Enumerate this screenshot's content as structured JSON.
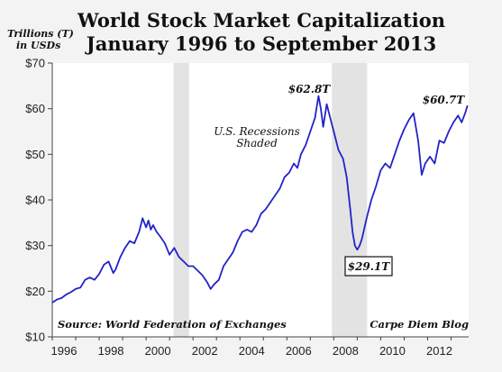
{
  "chart_data": {
    "type": "line",
    "title": "World Stock Market Capitalization",
    "subtitle": "January 1996 to September 2013",
    "ylabel_lines": [
      "Trillions (T)",
      "in USDs"
    ],
    "ylim": [
      10,
      70
    ],
    "xlim": [
      1996.0,
      2013.75
    ],
    "yticks": [
      "$10",
      "$20",
      "$30",
      "$40",
      "$50",
      "$60",
      "$70"
    ],
    "xticks": [
      "1996",
      "1998",
      "2000",
      "2002",
      "2004",
      "2006",
      "2008",
      "2010",
      "2012"
    ],
    "grid": false,
    "recessions": [
      {
        "start": 2001.17,
        "end": 2001.83
      },
      {
        "start": 2007.92,
        "end": 2009.42
      }
    ],
    "annotations": {
      "recession_note": [
        "U.S. Recessions",
        "Shaded"
      ],
      "peak_2007": "$62.8T",
      "trough_2009": "$29.1T",
      "latest_2013": "$60.7T",
      "source": "Source: World Federation of Exchanges",
      "credit": "Carpe Diem Blog"
    },
    "series": [
      {
        "color": "#2323c8",
        "x": [
          1996.0,
          1996.2,
          1996.4,
          1996.6,
          1996.8,
          1997.0,
          1997.2,
          1997.4,
          1997.6,
          1997.8,
          1998.0,
          1998.2,
          1998.4,
          1998.6,
          1998.7,
          1998.9,
          1999.1,
          1999.3,
          1999.5,
          1999.7,
          1999.85,
          2000.0,
          2000.1,
          2000.2,
          2000.3,
          2000.45,
          2000.6,
          2000.8,
          2001.0,
          2001.2,
          2001.4,
          2001.6,
          2001.8,
          2002.0,
          2002.2,
          2002.4,
          2002.6,
          2002.75,
          2002.9,
          2003.1,
          2003.3,
          2003.5,
          2003.7,
          2003.9,
          2004.1,
          2004.3,
          2004.5,
          2004.7,
          2004.9,
          2005.1,
          2005.3,
          2005.5,
          2005.7,
          2005.9,
          2006.1,
          2006.3,
          2006.45,
          2006.6,
          2006.8,
          2007.0,
          2007.2,
          2007.35,
          2007.45,
          2007.55,
          2007.7,
          2007.85,
          2008.0,
          2008.2,
          2008.4,
          2008.55,
          2008.7,
          2008.8,
          2008.9,
          2009.0,
          2009.1,
          2009.2,
          2009.4,
          2009.6,
          2009.8,
          2010.0,
          2010.2,
          2010.4,
          2010.6,
          2010.8,
          2011.0,
          2011.2,
          2011.4,
          2011.5,
          2011.6,
          2011.75,
          2011.9,
          2012.1,
          2012.3,
          2012.5,
          2012.7,
          2012.9,
          2013.1,
          2013.3,
          2013.45,
          2013.6,
          2013.7
        ],
        "y": [
          17.5,
          18.2,
          18.5,
          19.3,
          19.8,
          20.5,
          20.8,
          22.5,
          23.0,
          22.5,
          23.8,
          25.8,
          26.5,
          24.0,
          24.8,
          27.5,
          29.5,
          31.0,
          30.5,
          33.0,
          36.0,
          34.0,
          35.5,
          33.5,
          34.5,
          33.0,
          32.0,
          30.5,
          28.0,
          29.5,
          27.5,
          26.5,
          25.5,
          25.5,
          24.5,
          23.5,
          22.0,
          20.5,
          21.5,
          22.5,
          25.5,
          27.0,
          28.5,
          31.0,
          33.0,
          33.5,
          33.0,
          34.5,
          37.0,
          38.0,
          39.5,
          41.0,
          42.5,
          45.0,
          46.0,
          48.0,
          47.0,
          50.0,
          52.0,
          55.0,
          58.0,
          62.8,
          60.0,
          56.0,
          61.0,
          58.0,
          55.0,
          51.0,
          49.0,
          45.0,
          38.0,
          33.0,
          30.0,
          29.1,
          30.0,
          31.5,
          36.0,
          40.0,
          43.0,
          46.5,
          48.0,
          47.0,
          50.0,
          53.0,
          55.5,
          57.5,
          59.0,
          56.0,
          53.0,
          45.5,
          48.0,
          49.5,
          48.0,
          53.0,
          52.5,
          55.0,
          57.0,
          58.5,
          57.0,
          59.0,
          60.7
        ]
      }
    ]
  }
}
